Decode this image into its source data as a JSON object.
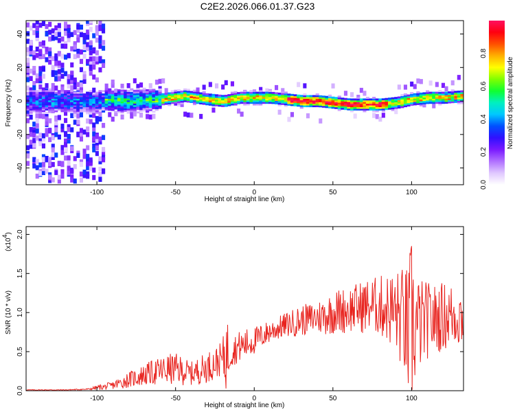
{
  "title": "C2E2.2026.066.01.37.G23",
  "chart_data": [
    {
      "type": "heatmap",
      "xlabel": "Height of straight line (km)",
      "ylabel": "Frequency (Hz)",
      "xlim": [
        -145,
        133
      ],
      "ylim": [
        -50,
        48
      ],
      "xticks": [
        -100,
        -50,
        0,
        50,
        100
      ],
      "yticks": [
        -40,
        -20,
        0,
        20,
        40
      ],
      "colorbar": {
        "label": "Normalized spectral amplitude",
        "range": [
          0,
          1
        ],
        "ticks": [
          "0.0",
          "0.2",
          "0.4",
          "0.6",
          "0.8"
        ],
        "colors": [
          "#ffffff",
          "#e0c8ff",
          "#b070ff",
          "#7a1aff",
          "#3010ff",
          "#0050ff",
          "#00c8ff",
          "#00f0c0",
          "#10ff30",
          "#80ff00",
          "#ffff00",
          "#ffb000",
          "#ff5000",
          "#ff0010",
          "#ff1060"
        ]
      },
      "ridge": {
        "x": [
          -95,
          -80,
          -60,
          -45,
          -30,
          -20,
          -10,
          0,
          10,
          20,
          30,
          40,
          50,
          60,
          70,
          80,
          90,
          100,
          110,
          120,
          133
        ],
        "y": [
          1,
          0,
          1,
          3,
          1,
          0,
          2,
          2,
          2,
          1,
          0,
          0,
          -1,
          -2,
          -2,
          -2,
          -1,
          1,
          2,
          2,
          3
        ]
      }
    },
    {
      "type": "line",
      "xlabel": "Height of straight line (km)",
      "ylabel": "SNR (10 * v/v)",
      "yscale_label": "(x10",
      "yscale_exp": "4",
      "yscale_close": ")",
      "xlim": [
        -145,
        133
      ],
      "ylim": [
        0,
        2.1
      ],
      "xticks": [
        -100,
        -50,
        0,
        50,
        100
      ],
      "yticks": [
        "0.0",
        "0.5",
        "1.0",
        "1.5",
        "2.0"
      ],
      "series": [
        {
          "color": "#e8231e",
          "x": [
            -145,
            -120,
            -105,
            -100,
            -95,
            -90,
            -85,
            -80,
            -75,
            -70,
            -65,
            -60,
            -55,
            -50,
            -45,
            -40,
            -35,
            -30,
            -25,
            -20,
            -18,
            -15,
            -10,
            -5,
            0,
            5,
            10,
            15,
            20,
            25,
            30,
            35,
            40,
            45,
            50,
            55,
            60,
            65,
            70,
            75,
            80,
            85,
            90,
            95,
            98,
            100,
            102,
            105,
            110,
            115,
            120,
            125,
            133
          ],
          "y": [
            0.01,
            0.01,
            0.02,
            0.04,
            0.05,
            0.07,
            0.1,
            0.14,
            0.17,
            0.2,
            0.23,
            0.25,
            0.27,
            0.28,
            0.25,
            0.22,
            0.26,
            0.3,
            0.35,
            0.42,
            0.46,
            0.5,
            0.56,
            0.6,
            0.64,
            0.7,
            0.76,
            0.8,
            0.84,
            0.87,
            0.9,
            0.92,
            0.94,
            0.96,
            1.0,
            1.02,
            1.04,
            1.06,
            1.08,
            1.1,
            1.08,
            1.06,
            1.0,
            0.9,
            0.7,
            0.85,
            0.8,
            0.85,
            0.9,
            0.92,
            0.95,
            0.97,
            0.95
          ],
          "spread": [
            0.005,
            0.005,
            0.01,
            0.03,
            0.04,
            0.05,
            0.08,
            0.1,
            0.12,
            0.14,
            0.16,
            0.18,
            0.2,
            0.2,
            0.18,
            0.15,
            0.18,
            0.2,
            0.2,
            0.22,
            0.6,
            0.2,
            0.2,
            0.2,
            0.18,
            0.16,
            0.15,
            0.15,
            0.16,
            0.18,
            0.2,
            0.2,
            0.22,
            0.25,
            0.28,
            0.3,
            0.3,
            0.32,
            0.35,
            0.35,
            0.4,
            0.45,
            0.55,
            0.7,
            0.9,
            1.2,
            0.8,
            0.6,
            0.5,
            0.45,
            0.45,
            0.42,
            0.4
          ]
        }
      ]
    }
  ]
}
